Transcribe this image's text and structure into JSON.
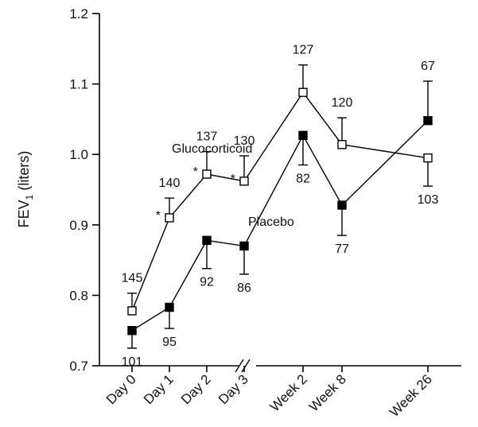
{
  "chart_data": {
    "type": "line",
    "ylabel_main": "FEV",
    "ylabel_sub": "1",
    "ylabel_tail": " (liters)",
    "ylim": [
      0.7,
      1.2
    ],
    "yticks": [
      "0.7",
      "0.8",
      "0.9",
      "1.0",
      "1.1",
      "1.2"
    ],
    "categories": [
      "Day 0",
      "Day 1",
      "Day 2",
      "Day 3",
      "Week 2",
      "Week 8",
      "Week 26"
    ],
    "axis_break": "between Day 3 and Week 2",
    "grid": false,
    "series": [
      {
        "name": "Glucocorticoid",
        "marker": "open-square",
        "values": [
          0.778,
          0.91,
          0.972,
          0.962,
          1.088,
          1.014,
          0.995
        ],
        "error_upper": [
          0.803,
          0.938,
          1.004,
          0.998,
          1.127,
          1.052,
          0.995
        ],
        "error_lower": [
          0.778,
          0.91,
          0.972,
          0.962,
          1.088,
          1.014,
          0.955
        ],
        "n": [
          "145",
          "140",
          "137",
          "130",
          "127",
          "120",
          "103"
        ],
        "significance": [
          "",
          "*",
          "*",
          "*",
          "",
          "",
          ""
        ]
      },
      {
        "name": "Placebo",
        "marker": "filled-square",
        "values": [
          0.75,
          0.783,
          0.878,
          0.87,
          1.027,
          0.928,
          1.048
        ],
        "error_upper": [
          0.75,
          0.783,
          0.878,
          0.87,
          1.027,
          0.928,
          1.104
        ],
        "error_lower": [
          0.725,
          0.753,
          0.838,
          0.83,
          0.985,
          0.885,
          1.048
        ],
        "n": [
          "101",
          "95",
          "92",
          "86",
          "82",
          "77",
          "67"
        ]
      }
    ]
  }
}
